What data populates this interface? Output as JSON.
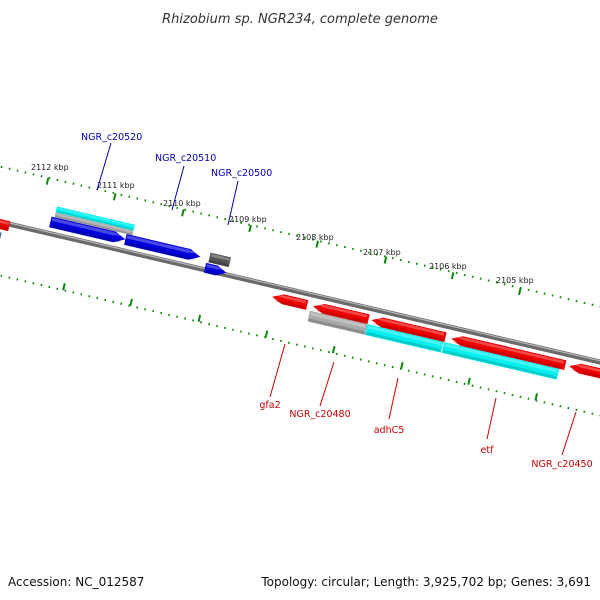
{
  "title": "Rhizobium sp. NGR234, complete genome",
  "footer": {
    "accession": "Accession: NC_012587",
    "summary": "Topology: circular; Length: 3,925,702 bp; Genes: 3,691"
  },
  "colors": {
    "forward_gene": "#0000dd",
    "reverse_gene": "#ee0000",
    "forward_label": "#0000bb",
    "reverse_label": "#cc0000",
    "cds_highlight": "#00f0f0",
    "rna_gray": "#aaaaaa",
    "pseudo_dark": "#555555",
    "backbone": "#808080",
    "tick": "#0a8a0a"
  },
  "ticks": [
    {
      "label": "2112 kbp"
    },
    {
      "label": "2111 kbp"
    },
    {
      "label": "2110 kbp"
    },
    {
      "label": "2109 kbp"
    },
    {
      "label": "2108 kbp"
    },
    {
      "label": "2107 kbp"
    },
    {
      "label": "2106 kbp"
    },
    {
      "label": "2105 kbp"
    }
  ],
  "forward_genes": [
    {
      "name": "NGR_c20520"
    },
    {
      "name": "NGR_c20510"
    },
    {
      "name": "NGR_c20500"
    }
  ],
  "reverse_genes": [
    {
      "name": "gfa2"
    },
    {
      "name": "NGR_c20480"
    },
    {
      "name": "adhC5"
    },
    {
      "name": "etf"
    },
    {
      "name": "NGR_c20450"
    }
  ]
}
